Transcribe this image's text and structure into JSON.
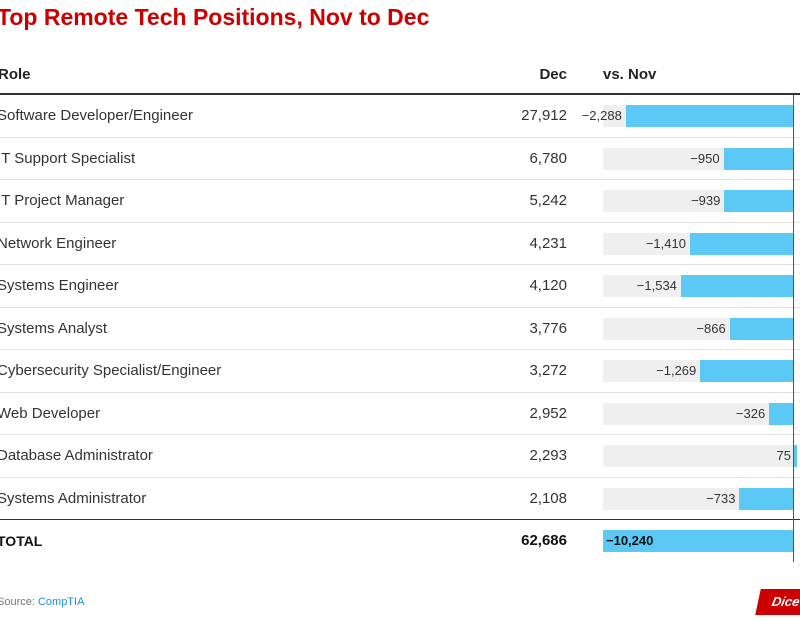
{
  "title": "Top Remote Tech Positions, Nov to Dec",
  "columns": {
    "role": "Role",
    "dec": "Dec",
    "change": "vs. Nov"
  },
  "chart_data": {
    "type": "table",
    "title": "Top Remote Tech Positions, Nov to Dec",
    "columns": [
      "Role",
      "Dec",
      "vs. Nov"
    ],
    "rows": [
      {
        "role": "Software Developer/Engineer",
        "dec": "27,912",
        "change_label": "−2,288",
        "change": -2288
      },
      {
        "role": "IT Support Specialist",
        "dec": "6,780",
        "change_label": "−950",
        "change": -950
      },
      {
        "role": "IT Project Manager",
        "dec": "5,242",
        "change_label": "−939",
        "change": -939
      },
      {
        "role": "Network Engineer",
        "dec": "4,231",
        "change_label": "−1,410",
        "change": -1410
      },
      {
        "role": "Systems Engineer",
        "dec": "4,120",
        "change_label": "−1,534",
        "change": -1534
      },
      {
        "role": "Systems Analyst",
        "dec": "3,776",
        "change_label": "−866",
        "change": -866
      },
      {
        "role": "Cybersecurity Specialist/Engineer",
        "dec": "3,272",
        "change_label": "−1,269",
        "change": -1269
      },
      {
        "role": "Web Developer",
        "dec": "2,952",
        "change_label": "−326",
        "change": -326
      },
      {
        "role": "Database Administrator",
        "dec": "2,293",
        "change_label": "75",
        "change": 75
      },
      {
        "role": "Systems Administrator",
        "dec": "2,108",
        "change_label": "−733",
        "change": -733
      }
    ],
    "total": {
      "role": "TOTAL",
      "dec": "62,686",
      "change_label": "−10,240",
      "change": -10240
    },
    "bar_color": "#5bc8f5"
  },
  "footer": {
    "source_prefix": "Source: ",
    "source_name": "CompTIA",
    "logo_text": "Dice"
  },
  "colors": {
    "title": "#cc0000",
    "bar": "#5bc8f5",
    "track": "#efefef"
  }
}
